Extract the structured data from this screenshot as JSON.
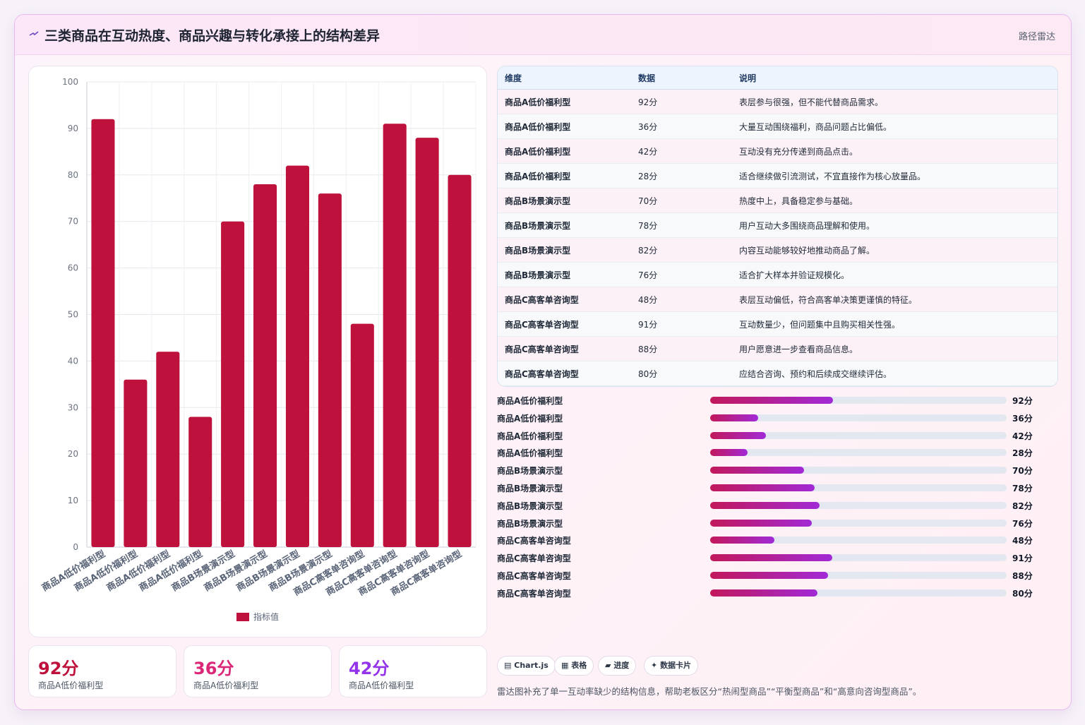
{
  "header": {
    "title": "三类商品在互动热度、商品兴趣与转化承接上的结构差异",
    "tag": "路径雷达"
  },
  "chart_data": {
    "type": "bar",
    "categories": [
      "商品A低价福利型",
      "商品A低价福利型",
      "商品A低价福利型",
      "商品A低价福利型",
      "商品B场景演示型",
      "商品B场景演示型",
      "商品B场景演示型",
      "商品B场景演示型",
      "商品C高客单咨询型",
      "商品C高客单咨询型",
      "商品C高客单咨询型",
      "商品C高客单咨询型"
    ],
    "series": [
      {
        "name": "指标值",
        "values": [
          92,
          36,
          42,
          28,
          70,
          78,
          82,
          76,
          48,
          91,
          88,
          80
        ],
        "color": "#be123c"
      }
    ],
    "ylim": [
      0,
      100
    ],
    "yticks": [
      "0",
      "10",
      "20",
      "30",
      "40",
      "50",
      "60",
      "70",
      "80",
      "90",
      "100"
    ],
    "grid": true,
    "legend": "bottom"
  },
  "kpis": [
    {
      "value": "92分",
      "label": "商品A低价福利型",
      "color": "#be123c"
    },
    {
      "value": "36分",
      "label": "商品A低价福利型",
      "color": "#db2777"
    },
    {
      "value": "42分",
      "label": "商品A低价福利型",
      "color": "#9333ea"
    }
  ],
  "table": {
    "headers": [
      "维度",
      "数据",
      "说明"
    ],
    "rows": [
      [
        "商品A低价福利型",
        "92分",
        "表层参与很强，但不能代替商品需求。"
      ],
      [
        "商品A低价福利型",
        "36分",
        "大量互动围绕福利，商品问题占比偏低。"
      ],
      [
        "商品A低价福利型",
        "42分",
        "互动没有充分传递到商品点击。"
      ],
      [
        "商品A低价福利型",
        "28分",
        "适合继续做引流测试，不宜直接作为核心放量品。"
      ],
      [
        "商品B场景演示型",
        "70分",
        "热度中上，具备稳定参与基础。"
      ],
      [
        "商品B场景演示型",
        "78分",
        "用户互动大多围绕商品理解和使用。"
      ],
      [
        "商品B场景演示型",
        "82分",
        "内容互动能够较好地推动商品了解。"
      ],
      [
        "商品B场景演示型",
        "76分",
        "适合扩大样本并验证规模化。"
      ],
      [
        "商品C高客单咨询型",
        "48分",
        "表层互动偏低，符合高客单决策更谨慎的特征。"
      ],
      [
        "商品C高客单咨询型",
        "91分",
        "互动数量少，但问题集中且购买相关性强。"
      ],
      [
        "商品C高客单咨询型",
        "88分",
        "用户愿意进一步查看商品信息。"
      ],
      [
        "商品C高客单咨询型",
        "80分",
        "应结合咨询、预约和后续成交继续评估。"
      ]
    ]
  },
  "progress": [
    {
      "label": "商品A低价福利型",
      "value": "92分",
      "fraction": 0.415
    },
    {
      "label": "商品A低价福利型",
      "value": "36分",
      "fraction": 0.162
    },
    {
      "label": "商品A低价福利型",
      "value": "42分",
      "fraction": 0.188
    },
    {
      "label": "商品A低价福利型",
      "value": "28分",
      "fraction": 0.126
    },
    {
      "label": "商品B场景演示型",
      "value": "70分",
      "fraction": 0.316
    },
    {
      "label": "商品B场景演示型",
      "value": "78分",
      "fraction": 0.352
    },
    {
      "label": "商品B场景演示型",
      "value": "82分",
      "fraction": 0.37
    },
    {
      "label": "商品B场景演示型",
      "value": "76分",
      "fraction": 0.343
    },
    {
      "label": "商品C高客单咨询型",
      "value": "48分",
      "fraction": 0.217
    },
    {
      "label": "商品C高客单咨询型",
      "value": "91分",
      "fraction": 0.411
    },
    {
      "label": "商品C高客单咨询型",
      "value": "88分",
      "fraction": 0.397
    },
    {
      "label": "商品C高客单咨询型",
      "value": "80分",
      "fraction": 0.361
    }
  ],
  "chips": [
    {
      "icon": "chart-icon",
      "glyph": "▤",
      "label": "Chart.js"
    },
    {
      "icon": "table-icon",
      "glyph": "▦",
      "label": "表格"
    },
    {
      "icon": "progress-icon",
      "glyph": "▰",
      "label": "进度"
    },
    {
      "icon": "sparkle-icon",
      "glyph": "✦",
      "label": "数据卡片"
    }
  ],
  "footnote": "雷达图补充了单一互动率缺少的结构信息，帮助老板区分“热闹型商品”“平衡型商品”和“高意向咨询型商品”。"
}
